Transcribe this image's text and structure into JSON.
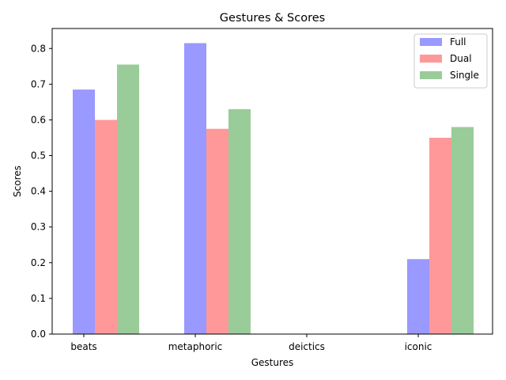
{
  "chart_data": {
    "type": "bar",
    "title": "Gestures & Scores",
    "xlabel": "Gestures",
    "ylabel": "Scores",
    "categories": [
      "beats",
      "metaphoric",
      "deictics",
      "iconic"
    ],
    "series": [
      {
        "name": "Full",
        "color": "#9999ff",
        "values": [
          0.685,
          0.815,
          0,
          0.21
        ]
      },
      {
        "name": "Dual",
        "color": "#ff9999",
        "values": [
          0.6,
          0.575,
          0,
          0.55
        ]
      },
      {
        "name": "Single",
        "color": "#99cc99",
        "values": [
          0.755,
          0.63,
          0,
          0.58
        ]
      }
    ],
    "ylim": [
      0,
      0.856
    ],
    "yticks": [
      "0.0",
      "0.1",
      "0.2",
      "0.3",
      "0.4",
      "0.5",
      "0.6",
      "0.7",
      "0.8"
    ],
    "grid": false,
    "legend_position": "top-right"
  }
}
